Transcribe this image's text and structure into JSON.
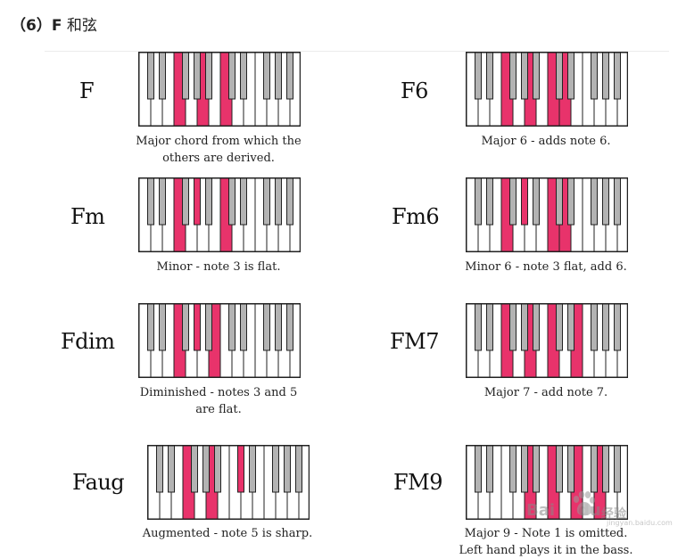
{
  "heading": {
    "num": "（6）",
    "label": "F",
    "rest": " 和弦"
  },
  "colors": {
    "highlight": "#e8336b",
    "black_key": "#b3b3b3",
    "white_key": "#ffffff",
    "outline": "#222222"
  },
  "chords": [
    {
      "id": "F",
      "name": "F",
      "desc": [
        "Major chord from which the",
        "others are derived."
      ],
      "notes": [
        "F",
        "A",
        "C"
      ]
    },
    {
      "id": "F6",
      "name": "F6",
      "desc": [
        "Major 6 - adds note 6."
      ],
      "notes": [
        "F",
        "A",
        "C",
        "D"
      ]
    },
    {
      "id": "Fm",
      "name": "Fm",
      "desc": [
        "Minor - note 3 is flat."
      ],
      "notes": [
        "F",
        "Ab",
        "C"
      ]
    },
    {
      "id": "Fm6",
      "name": "Fm6",
      "desc": [
        "Minor 6 - note 3 flat, add 6."
      ],
      "notes": [
        "F",
        "Ab",
        "C",
        "D"
      ]
    },
    {
      "id": "Fdim",
      "name": "Fdim",
      "desc": [
        "Diminished - notes 3 and 5",
        "are flat."
      ],
      "notes": [
        "F",
        "Ab",
        "B"
      ]
    },
    {
      "id": "FM7",
      "name": "FM7",
      "desc": [
        "Major 7 - add note 7."
      ],
      "notes": [
        "F",
        "A",
        "C",
        "E"
      ]
    },
    {
      "id": "Faug",
      "name": "Faug",
      "desc": [
        "Augmented - note 5 is sharp."
      ],
      "notes": [
        "F",
        "A",
        "C#"
      ]
    },
    {
      "id": "FM9",
      "name": "FM9",
      "desc": [
        "Major 9 - Note 1 is omitted.",
        "Left hand plays it in the bass."
      ],
      "notes": [
        "A",
        "C",
        "E",
        "G"
      ]
    }
  ],
  "watermark": {
    "text": "Bai",
    "text2": "du",
    "jingyan": "经验",
    "url": "jingyan.baidu.com"
  }
}
